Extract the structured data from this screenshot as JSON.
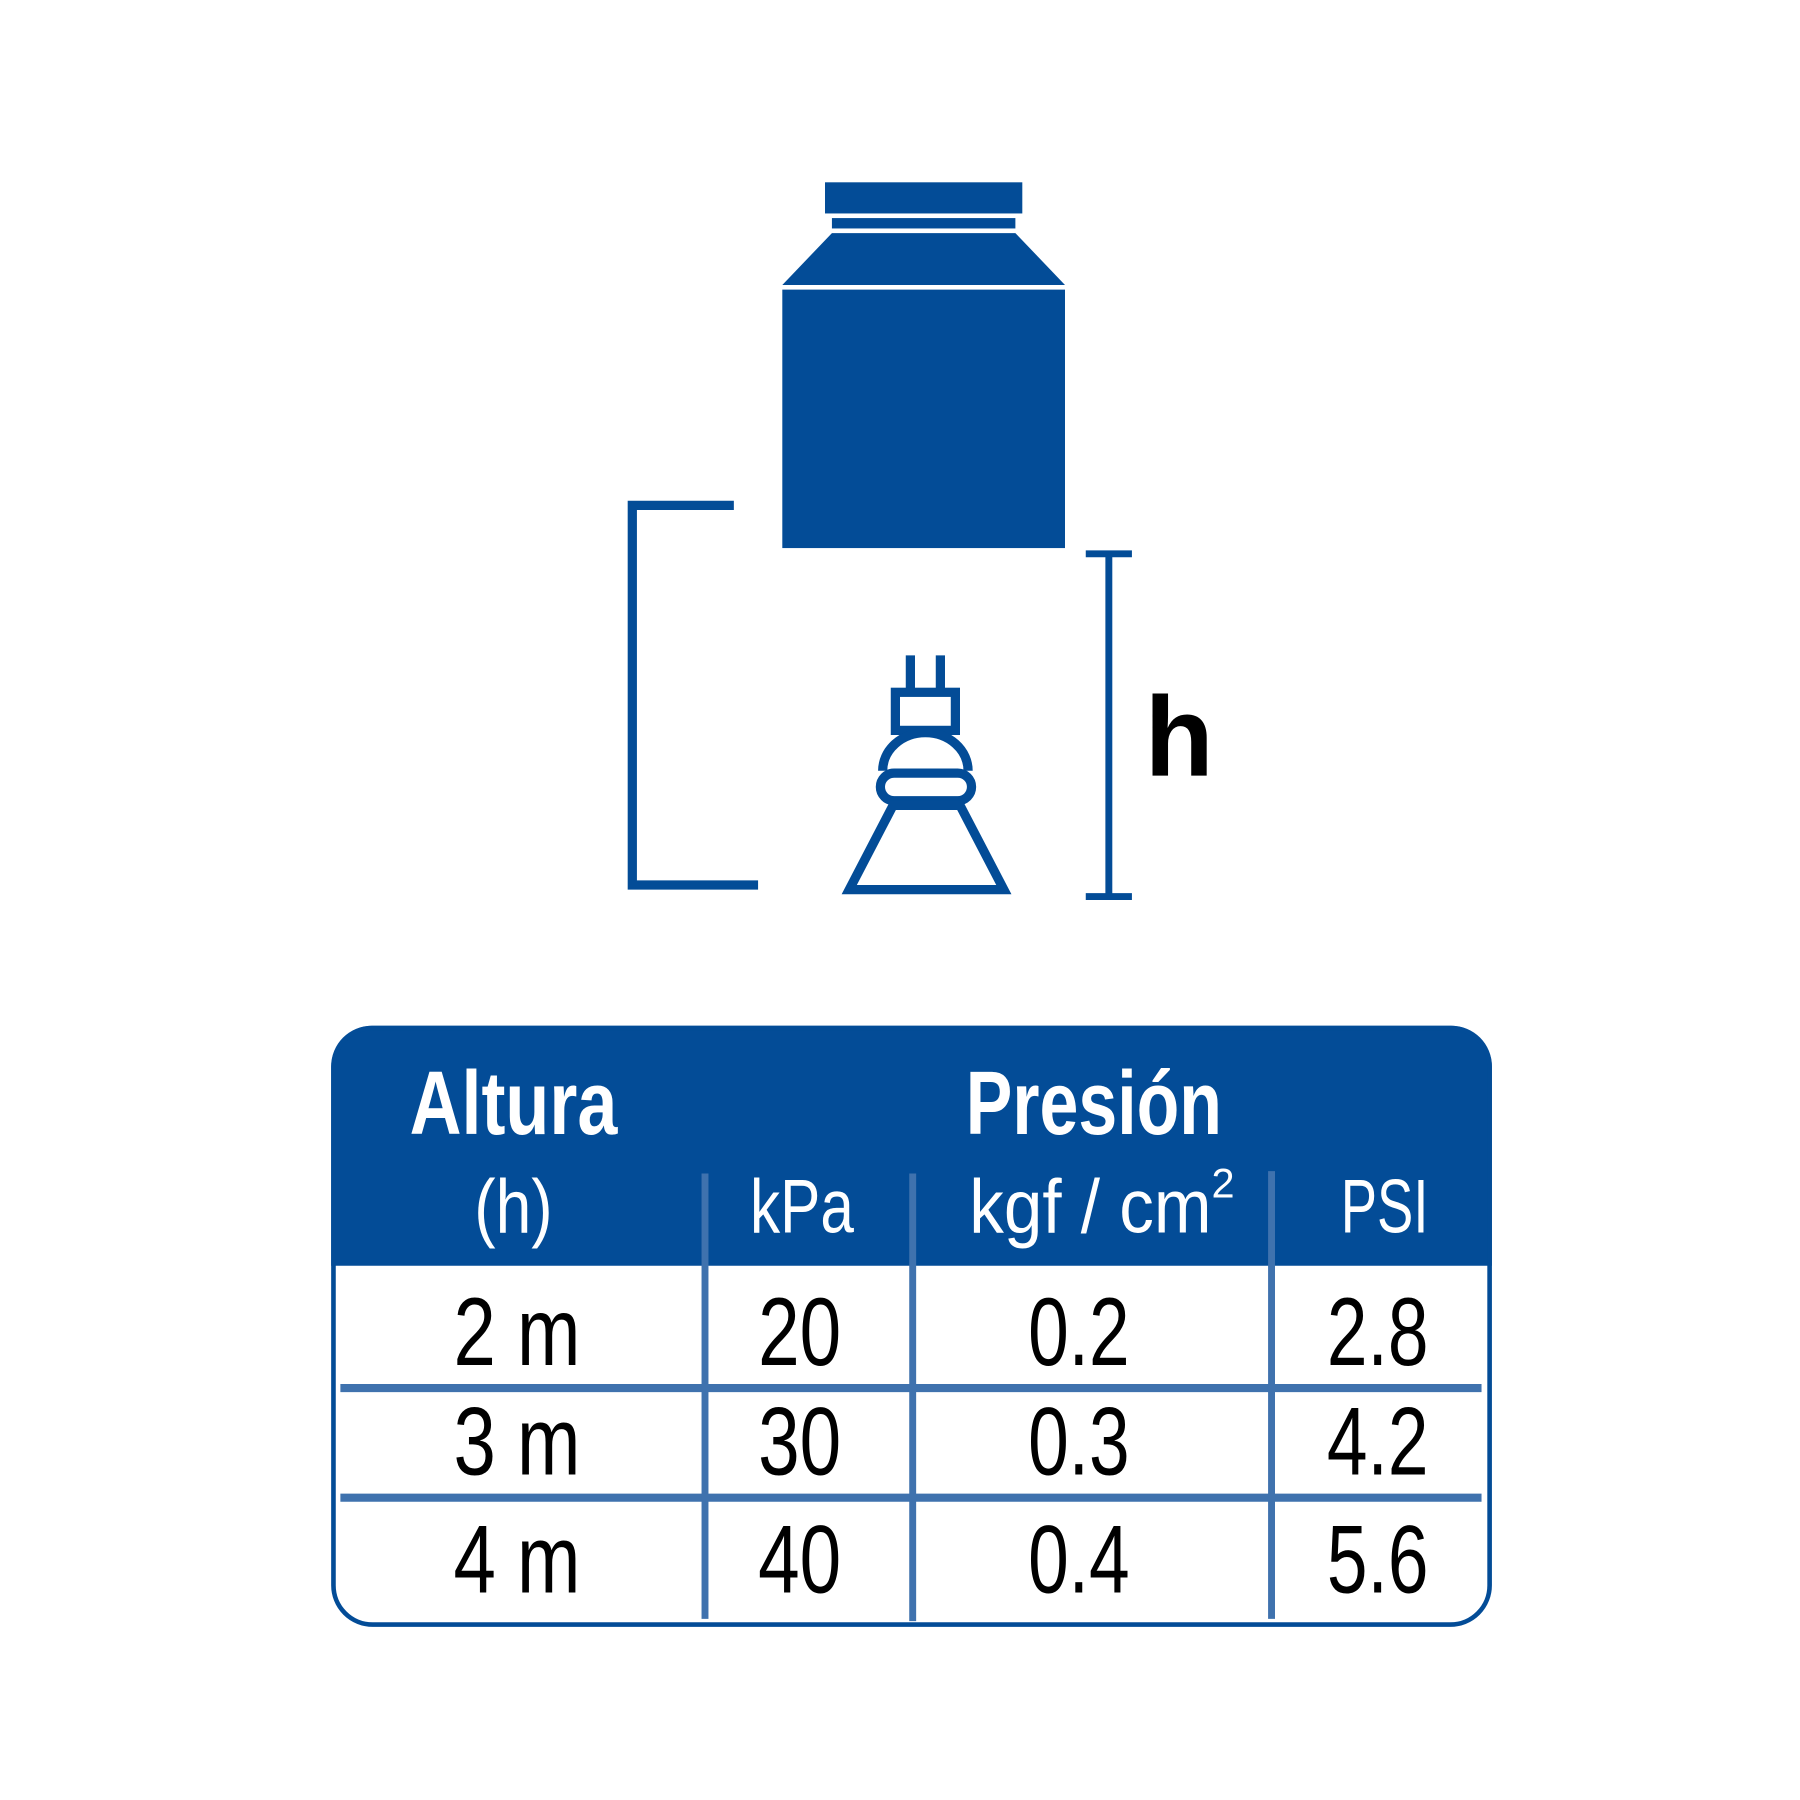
{
  "colors": {
    "primary": "#034C97",
    "grid": "#3F72AE",
    "text": "#000000",
    "header_text": "#FFFFFF"
  },
  "diagram": {
    "height_label": "h",
    "icons": [
      "water-tank-icon",
      "water-pump-icon",
      "height-dimension-icon",
      "pipe-bracket-icon"
    ]
  },
  "table": {
    "header_altura": "Altura",
    "header_presion": "Presión",
    "sub_h": "(h)",
    "sub_kpa": "kPa",
    "sub_kgf": "kgf / cm",
    "sub_kgf_sup": "2",
    "sub_psi": "PSI",
    "rows": [
      {
        "altura": "2 m",
        "kpa": "20",
        "kgf": "0.2",
        "psi": "2.8"
      },
      {
        "altura": "3 m",
        "kpa": "30",
        "kgf": "0.3",
        "psi": "4.2"
      },
      {
        "altura": "4 m",
        "kpa": "40",
        "kgf": "0.4",
        "psi": "5.6"
      }
    ]
  }
}
